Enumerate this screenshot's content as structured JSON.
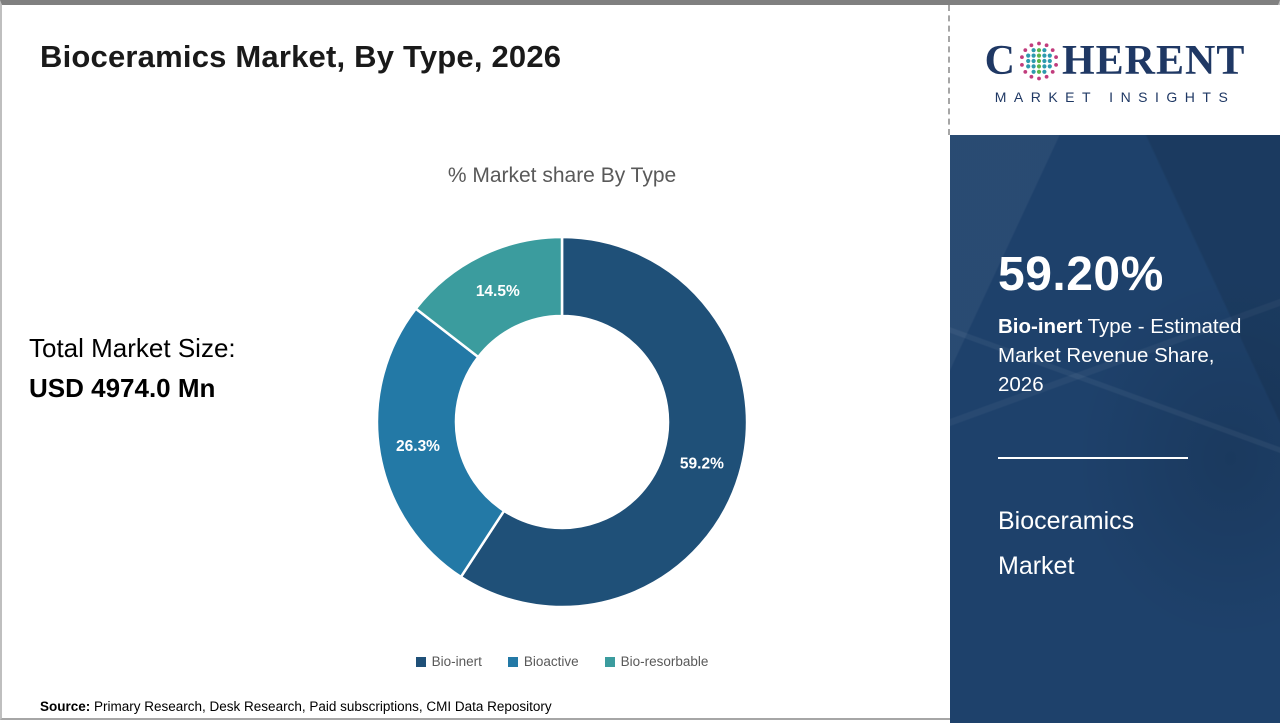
{
  "page": {
    "title": "Bioceramics Market, By Type, 2026"
  },
  "logo": {
    "brand_prefix": "C",
    "brand_suffix": "HERENT",
    "subtitle": "MARKET INSIGHTS",
    "navy": "#1f3864",
    "globe_green": "#5bb54b",
    "globe_teal": "#2d9aae",
    "globe_magenta": "#c13c7d"
  },
  "chart_data": {
    "type": "donut",
    "title": "% Market share By Type",
    "categories": [
      "Bio-inert",
      "Bioactive",
      "Bio-resorbable"
    ],
    "values": [
      59.2,
      26.3,
      14.5
    ],
    "labels": [
      "59.2%",
      "26.3%",
      "14.5%"
    ],
    "colors": [
      "#1f5078",
      "#2379a6",
      "#3b9c9e"
    ],
    "start_angle_deg": 0,
    "direction": "clockwise",
    "outer_radius": 185,
    "inner_radius": 106,
    "label_radius": 146,
    "legend_position": "bottom"
  },
  "left_panel": {
    "total_label": "Total Market Size:",
    "total_value": "USD 4974.0 Mn"
  },
  "sidebar": {
    "background": "#1e416b",
    "stat": "59.20%",
    "desc_bold": "Bio-inert",
    "desc_rest": " Type - Estimated Market Revenue Share, 2026",
    "market_name": "Bioceramics Market"
  },
  "footer": {
    "source_label": "Source:",
    "source_text": " Primary Research, Desk Research, Paid subscriptions, CMI Data Repository"
  }
}
